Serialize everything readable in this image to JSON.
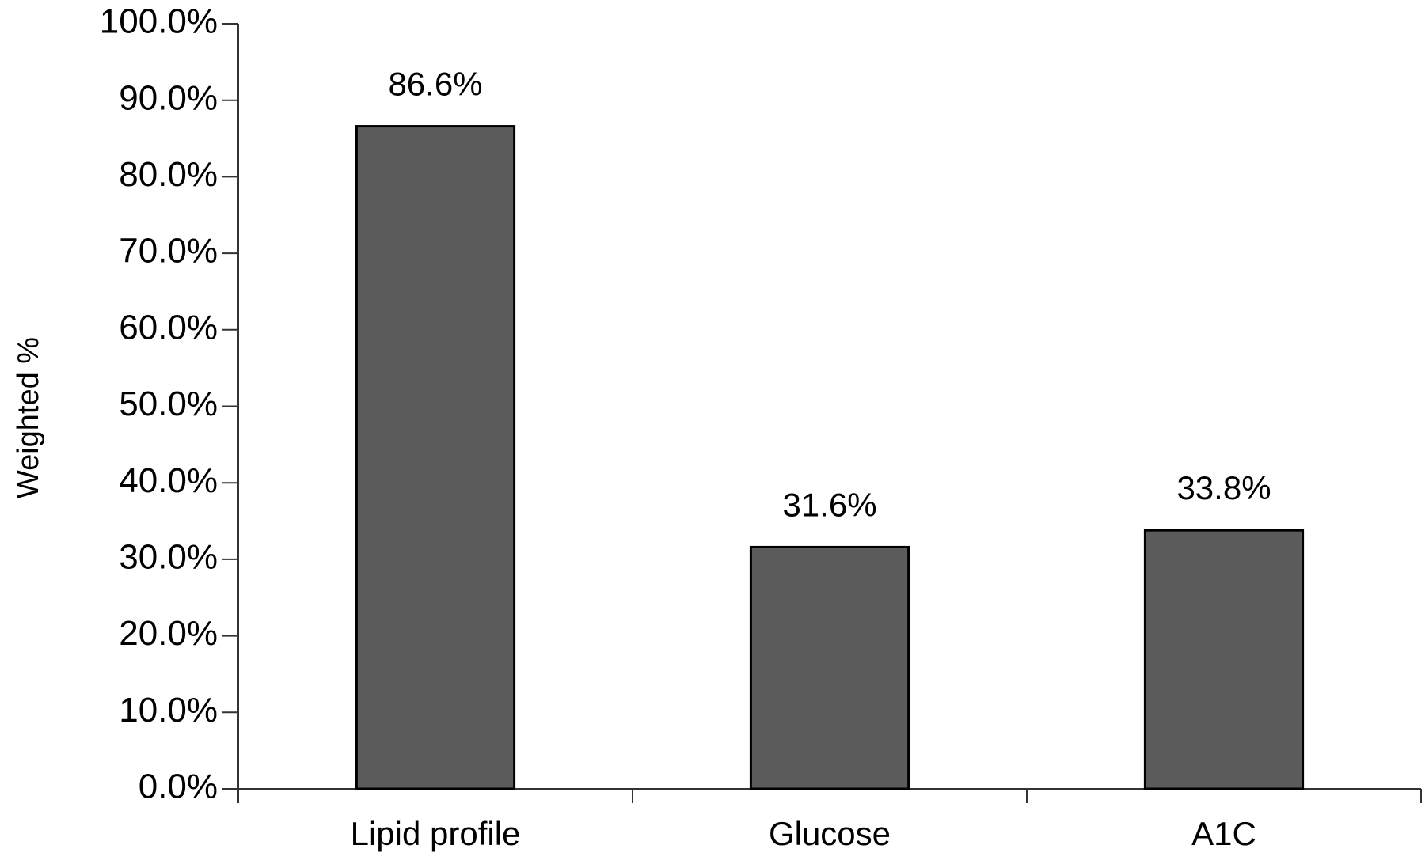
{
  "chart_data": {
    "type": "bar",
    "y_label": "Weighted %",
    "categories": [
      "Lipid profile",
      "Glucose",
      "A1C"
    ],
    "values": [
      86.6,
      31.6,
      33.8
    ],
    "value_labels": [
      "86.6%",
      "31.6%",
      "33.8%"
    ],
    "color": "#5b5b5b",
    "ylim": [
      0,
      100
    ],
    "yticks": [
      {
        "value": 0,
        "label": "0.0%"
      },
      {
        "value": 10,
        "label": "10.0%"
      },
      {
        "value": 20,
        "label": "20.0%"
      },
      {
        "value": 30,
        "label": "30.0%"
      },
      {
        "value": 40,
        "label": "40.0%"
      },
      {
        "value": 50,
        "label": "50.0%"
      },
      {
        "value": 60,
        "label": "60.0%"
      },
      {
        "value": 70,
        "label": "70.0%"
      },
      {
        "value": 80,
        "label": "80.0%"
      },
      {
        "value": 90,
        "label": "90.0%"
      },
      {
        "value": 100,
        "label": "100.0%"
      }
    ],
    "grid": false
  }
}
